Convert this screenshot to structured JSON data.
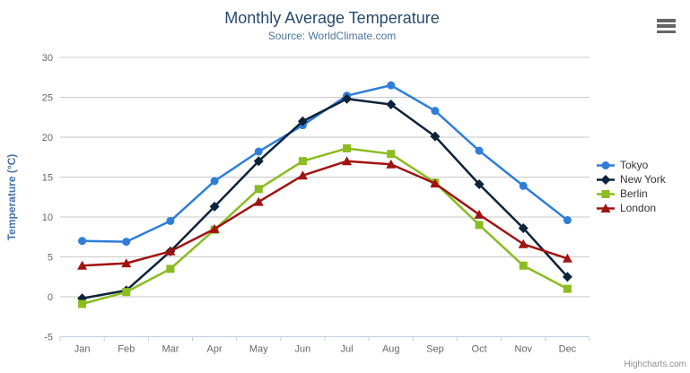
{
  "credits_label": "Highcharts.com",
  "header": {
    "menu_icon": "hamburger-menu-icon",
    "menu_color": "#666666"
  },
  "chart_data": {
    "type": "line",
    "title": "Monthly Average Temperature",
    "subtitle": "Source: WorldClimate.com",
    "title_color": "#274b6d",
    "subtitle_color": "#4d759e",
    "xlabel": "",
    "ylabel": "Temperature (°C)",
    "ylabel_color": "#4572a7",
    "ylim": [
      -5,
      30
    ],
    "ytick_step": 5,
    "yticks": [
      -5,
      0,
      5,
      10,
      15,
      20,
      25,
      30
    ],
    "grid": true,
    "gridline_color": "#c9c9c9",
    "axis_line_color": "#c0d0e0",
    "tick_label_color": "#666666",
    "legend_position": "right",
    "legend_text_color": "#333333",
    "categories": [
      "Jan",
      "Feb",
      "Mar",
      "Apr",
      "May",
      "Jun",
      "Jul",
      "Aug",
      "Sep",
      "Oct",
      "Nov",
      "Dec"
    ],
    "series": [
      {
        "name": "Tokyo",
        "color": "#2f7ed8",
        "marker": "circle",
        "values": [
          7.0,
          6.9,
          9.5,
          14.5,
          18.2,
          21.5,
          25.2,
          26.5,
          23.3,
          18.3,
          13.9,
          9.6
        ]
      },
      {
        "name": "New York",
        "color": "#0d233a",
        "marker": "diamond",
        "values": [
          -0.2,
          0.8,
          5.7,
          11.3,
          17.0,
          22.0,
          24.8,
          24.1,
          20.1,
          14.1,
          8.6,
          2.5
        ]
      },
      {
        "name": "Berlin",
        "color": "#8bbc21",
        "marker": "square",
        "values": [
          -0.9,
          0.6,
          3.5,
          8.4,
          13.5,
          17.0,
          18.6,
          17.9,
          14.3,
          9.0,
          3.9,
          1.0
        ]
      },
      {
        "name": "London",
        "color": "#a01313",
        "marker": "triangle",
        "values": [
          3.9,
          4.2,
          5.7,
          8.5,
          11.9,
          15.2,
          17.0,
          16.6,
          14.2,
          10.3,
          6.6,
          4.8
        ]
      }
    ]
  }
}
